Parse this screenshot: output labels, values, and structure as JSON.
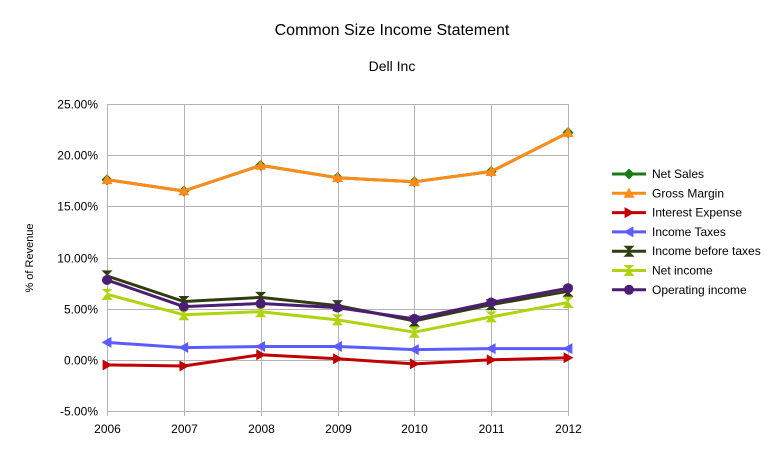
{
  "chart_data": {
    "type": "line",
    "title": "Common Size Income Statement",
    "subtitle": "Dell Inc",
    "xlabel": "",
    "ylabel": "% of Revenue",
    "x": [
      "2006",
      "2007",
      "2008",
      "2009",
      "2010",
      "2011",
      "2012"
    ],
    "ylim": [
      -0.05,
      0.25
    ],
    "yticks": [
      -0.05,
      0.0,
      0.05,
      0.1,
      0.15,
      0.2,
      0.25
    ],
    "ytick_labels": [
      "-5.00%",
      "0.00%",
      "5.00%",
      "10.00%",
      "15.00%",
      "20.00%",
      "25.00%"
    ],
    "grid": "horizontal",
    "legend_position": "right",
    "series": [
      {
        "name": "Net Sales",
        "color": "#1a7a1a",
        "marker": "diamond",
        "values": [
          0.176,
          0.165,
          0.19,
          0.178,
          0.174,
          0.184,
          0.222
        ]
      },
      {
        "name": "Gross Margin",
        "color": "#ff8c1a",
        "marker": "triangle-up",
        "values": [
          0.176,
          0.165,
          0.19,
          0.178,
          0.174,
          0.184,
          0.222
        ]
      },
      {
        "name": "Interest Expense",
        "color": "#c00000",
        "marker": "triangle-right",
        "values": [
          -0.005,
          -0.006,
          0.005,
          0.001,
          -0.004,
          0.0,
          0.002
        ]
      },
      {
        "name": "Income Taxes",
        "color": "#5b5bff",
        "marker": "triangle-left",
        "values": [
          0.017,
          0.012,
          0.013,
          0.013,
          0.01,
          0.011,
          0.011
        ]
      },
      {
        "name": "Income before taxes",
        "color": "#2f3d0f",
        "marker": "hourglass",
        "values": [
          0.082,
          0.057,
          0.061,
          0.053,
          0.038,
          0.054,
          0.067
        ]
      },
      {
        "name": "Net income",
        "color": "#aed40e",
        "marker": "bowtie",
        "values": [
          0.064,
          0.044,
          0.047,
          0.039,
          0.027,
          0.042,
          0.056
        ]
      },
      {
        "name": "Operating income",
        "color": "#4b1e74",
        "marker": "circle",
        "values": [
          0.078,
          0.052,
          0.055,
          0.051,
          0.04,
          0.056,
          0.07
        ]
      }
    ]
  }
}
